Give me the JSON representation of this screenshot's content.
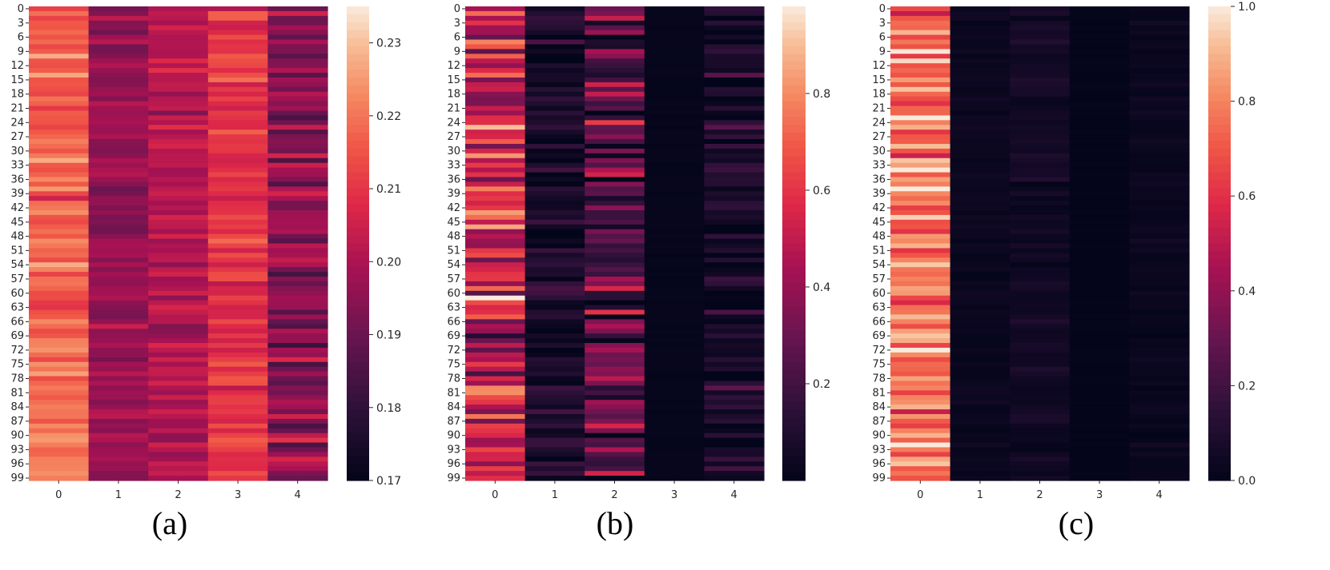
{
  "chart_data": [
    {
      "type": "heatmap",
      "panel_label": "(a)",
      "columns": [
        "0",
        "1",
        "2",
        "3",
        "4"
      ],
      "row_count": 100,
      "row_tick_labels": [
        "0",
        "3",
        "6",
        "9",
        "12",
        "15",
        "18",
        "21",
        "24",
        "27",
        "30",
        "33",
        "36",
        "39",
        "42",
        "45",
        "48",
        "51",
        "54",
        "57",
        "60",
        "63",
        "66",
        "69",
        "72",
        "75",
        "78",
        "81",
        "84",
        "87",
        "90",
        "93",
        "96",
        "99"
      ],
      "vmin": 0.17,
      "vmax": 0.235,
      "colorbar_ticks": [
        "0.17",
        "0.18",
        "0.19",
        "0.20",
        "0.21",
        "0.22",
        "0.23"
      ],
      "column_means": [
        0.218,
        0.196,
        0.201,
        0.21,
        0.195
      ],
      "column_spread": [
        0.008,
        0.005,
        0.006,
        0.006,
        0.011
      ],
      "seed": 11
    },
    {
      "type": "heatmap",
      "panel_label": "(b)",
      "columns": [
        "0",
        "1",
        "2",
        "3",
        "4"
      ],
      "row_count": 100,
      "row_tick_labels": [
        "0",
        "3",
        "6",
        "9",
        "12",
        "15",
        "18",
        "21",
        "24",
        "27",
        "30",
        "33",
        "36",
        "39",
        "42",
        "45",
        "48",
        "51",
        "54",
        "57",
        "60",
        "63",
        "66",
        "69",
        "72",
        "75",
        "78",
        "81",
        "84",
        "87",
        "90",
        "93",
        "96",
        "99"
      ],
      "vmin": 0.0,
      "vmax": 0.98,
      "colorbar_ticks": [
        "0.2",
        "0.4",
        "0.6",
        "0.8"
      ],
      "column_means": [
        0.55,
        0.08,
        0.25,
        0.01,
        0.08
      ],
      "column_spread": [
        0.28,
        0.12,
        0.25,
        0.005,
        0.14
      ],
      "seed": 23
    },
    {
      "type": "heatmap",
      "panel_label": "(c)",
      "columns": [
        "0",
        "1",
        "2",
        "3",
        "4"
      ],
      "row_count": 100,
      "row_tick_labels": [
        "0",
        "3",
        "6",
        "9",
        "12",
        "15",
        "18",
        "21",
        "24",
        "27",
        "30",
        "33",
        "36",
        "39",
        "42",
        "45",
        "48",
        "51",
        "54",
        "57",
        "60",
        "63",
        "66",
        "69",
        "72",
        "75",
        "78",
        "81",
        "84",
        "87",
        "90",
        "93",
        "96",
        "99"
      ],
      "vmin": 0.0,
      "vmax": 1.0,
      "colorbar_ticks": [
        "0.0",
        "0.2",
        "0.4",
        "0.6",
        "0.8",
        "1.0"
      ],
      "column_means": [
        0.78,
        0.03,
        0.05,
        0.005,
        0.03
      ],
      "column_spread": [
        0.2,
        0.02,
        0.04,
        0.003,
        0.025
      ],
      "seed": 37
    }
  ]
}
